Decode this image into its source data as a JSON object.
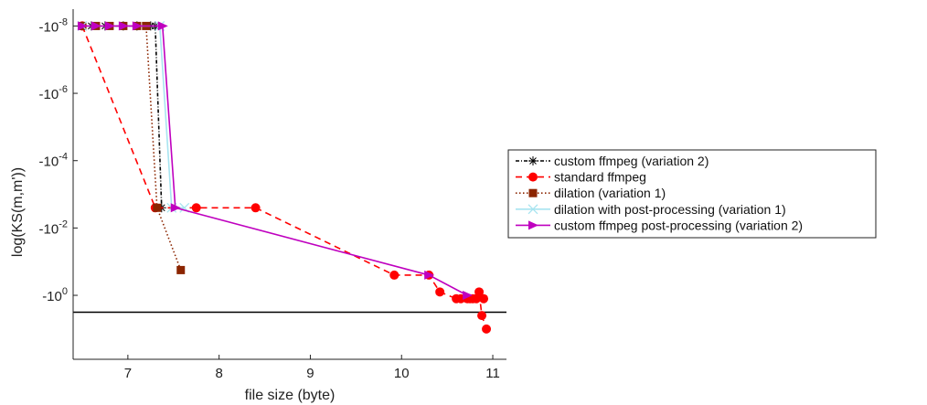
{
  "chart_data": {
    "type": "line",
    "xlabel": "file size (byte)",
    "ylabel": "log(KS(m,m'))",
    "xlim": [
      6.4,
      11.15
    ],
    "ylim": [
      -8.5,
      1.9
    ],
    "y_reversed": true,
    "x_ticks": [
      {
        "value": 7,
        "label": "7"
      },
      {
        "value": 8,
        "label": "8"
      },
      {
        "value": 9,
        "label": "9"
      },
      {
        "value": 10,
        "label": "10"
      },
      {
        "value": 11,
        "label": "11"
      }
    ],
    "y_ticks": [
      {
        "value": -8,
        "base": "-10",
        "exp": "-8"
      },
      {
        "value": -6,
        "base": "-10",
        "exp": "-6"
      },
      {
        "value": -4,
        "base": "-10",
        "exp": "-4"
      },
      {
        "value": -2,
        "base": "-10",
        "exp": "-2"
      },
      {
        "value": 0,
        "base": "-10",
        "exp": "0"
      }
    ],
    "reference_line": {
      "y": 0.5,
      "color": "#000000"
    },
    "legend_placement": "right",
    "series": [
      {
        "name": "custom ffmpeg (variation 2)",
        "color": "#000000",
        "dash": "4,2,1,2",
        "marker": "star",
        "x": [
          6.5,
          6.6,
          6.75,
          6.95,
          7.1,
          7.25,
          7.3,
          7.37
        ],
        "y": [
          -8.0,
          -8.0,
          -8.0,
          -8.0,
          -8.0,
          -8.0,
          -8.0,
          -2.6
        ]
      },
      {
        "name": "standard ffmpeg",
        "color": "#ff0000",
        "dash": "7,5",
        "marker": "circle",
        "x": [
          6.5,
          7.3,
          7.75,
          8.4,
          9.92,
          10.3,
          10.42,
          10.6,
          10.75,
          10.9,
          10.85,
          10.88,
          10.93
        ],
        "y": [
          -8.0,
          -2.6,
          -2.6,
          -2.6,
          -0.6,
          -0.6,
          -0.1,
          0.1,
          0.1,
          0.1,
          -0.1,
          0.6,
          1.0
        ],
        "extra_points": {
          "x": [
            10.65,
            10.72,
            10.78,
            10.82
          ],
          "y": [
            0.1,
            0.1,
            0.1,
            0.1
          ]
        }
      },
      {
        "name": "dilation (variation 1)",
        "color": "#8b2500",
        "dash": "1.5,2.5",
        "marker": "square",
        "x": [
          6.5,
          6.65,
          6.8,
          6.95,
          7.1,
          7.2,
          7.32,
          7.58
        ],
        "y": [
          -8.0,
          -8.0,
          -8.0,
          -8.0,
          -8.0,
          -8.0,
          -2.6,
          -0.75
        ]
      },
      {
        "name": "dilation with post-processing (variation 1)",
        "color": "#a8e4f0",
        "dash": "",
        "marker": "x",
        "x": [
          6.5,
          7.35,
          7.48,
          7.62
        ],
        "y": [
          -8.0,
          -8.0,
          -2.6,
          -2.6
        ]
      },
      {
        "name": "custom ffmpeg post-processing (variation 2)",
        "color": "#bf00bf",
        "dash": "",
        "marker": "triangle-right",
        "x": [
          6.5,
          6.65,
          6.8,
          6.95,
          7.1,
          7.38,
          7.52,
          10.3,
          10.72
        ],
        "y": [
          -8.0,
          -8.0,
          -8.0,
          -8.0,
          -8.0,
          -8.0,
          -2.6,
          -0.6,
          0.0
        ]
      }
    ]
  }
}
